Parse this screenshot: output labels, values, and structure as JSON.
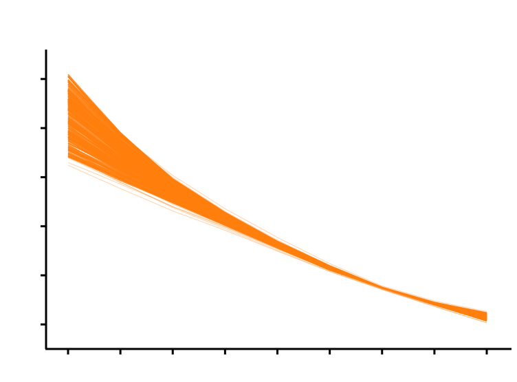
{
  "chart_data": {
    "type": "line",
    "title": "",
    "xlabel": "",
    "ylabel": "",
    "x_tick_labels": [
      "",
      "",
      "",
      "",
      "",
      "",
      "",
      "",
      ""
    ],
    "y_tick_labels": [
      "",
      "",
      "",
      "",
      "",
      ""
    ],
    "xlim": [
      0,
      8
    ],
    "ylim": [
      0.5,
      6.6
    ],
    "band": {
      "x": [
        0,
        1,
        2,
        3,
        4,
        5,
        6,
        7,
        8
      ],
      "core_lower": [
        4.4,
        3.9,
        3.45,
        3.0,
        2.55,
        2.1,
        1.75,
        1.4,
        1.05
      ],
      "core_upper": [
        6.1,
        4.95,
        4.0,
        3.3,
        2.7,
        2.2,
        1.75,
        1.45,
        1.25
      ],
      "outer_lower": [
        4.0,
        3.6,
        3.2,
        2.85,
        2.45,
        2.05,
        1.7,
        1.35,
        1.0
      ],
      "outer_upper": [
        6.5,
        5.3,
        4.3,
        3.5,
        2.85,
        2.28,
        1.8,
        1.5,
        1.3
      ]
    },
    "series_count": 160,
    "color": "#ff7f0e",
    "grid": false,
    "legend": "none"
  }
}
